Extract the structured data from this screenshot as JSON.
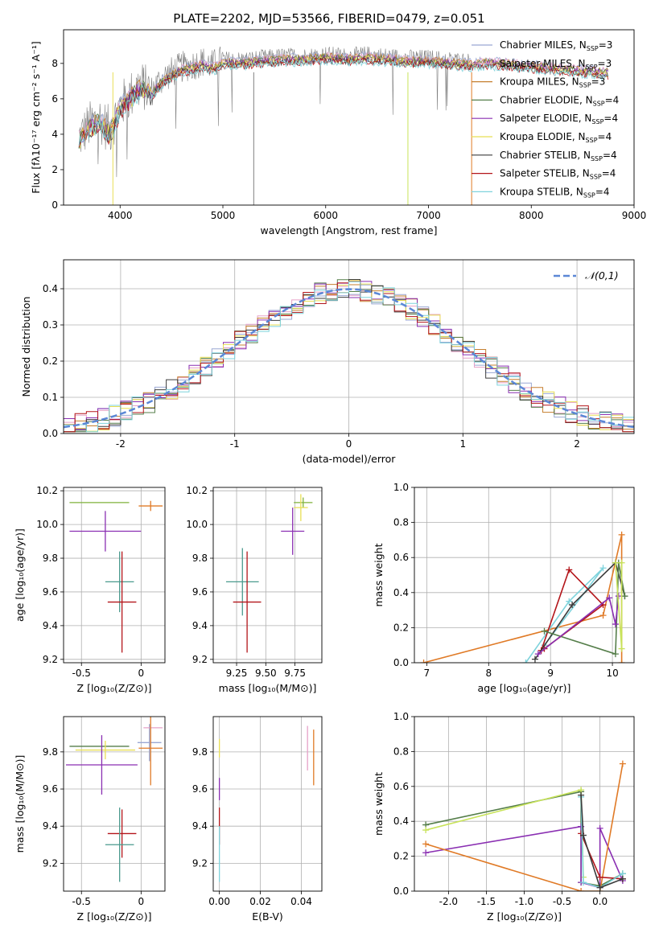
{
  "colors": {
    "chabrier_miles": "#9aa7d3",
    "salpeter_miles": "#e6a0c8",
    "kroupa_miles": "#c57f2f",
    "chabrier_elodie": "#557e4a",
    "salpeter_elodie": "#8a2fb2",
    "kroupa_elodie": "#e8df55",
    "chabrier_stelib": "#3b3b3b",
    "salpeter_stelib": "#b3151a",
    "kroupa_stelib": "#7fd3dc",
    "green_line": "#7fb23a",
    "orange_line": "#e07a26",
    "lime_line": "#c8e35a",
    "blue_dash": "#5b87d6"
  },
  "chart_data": [
    {
      "id": "spectrum",
      "type": "line",
      "title": "PLATE=2202, MJD=53566, FIBERID=0479, z=0.051",
      "xlabel": "wavelength [Angstrom, rest frame]",
      "ylabel": "Flux [fλ10⁻¹⁷ erg cm⁻² s⁻¹ A⁻¹]",
      "xlim": [
        3450,
        9000
      ],
      "ylim": [
        0,
        9.9
      ],
      "xticks": [
        4000,
        5000,
        6000,
        7000,
        8000,
        9000
      ],
      "yticks": [
        0,
        2,
        4,
        6,
        8
      ],
      "legend_position": "right",
      "legend": [
        {
          "name": "Chabrier MILES, N_SSP=3",
          "color": "#9aa7d3"
        },
        {
          "name": "Salpeter MILES, N_SSP=3",
          "color": "#e6a0c8"
        },
        {
          "name": "Kroupa MILES, N_SSP=3",
          "color": "#c57f2f"
        },
        {
          "name": "Chabrier ELODIE, N_SSP=4",
          "color": "#557e4a"
        },
        {
          "name": "Salpeter ELODIE, N_SSP=4",
          "color": "#8a2fb2"
        },
        {
          "name": "Kroupa ELODIE, N_SSP=4",
          "color": "#e8df55"
        },
        {
          "name": "Chabrier STELIB, N_SSP=4",
          "color": "#3b3b3b"
        },
        {
          "name": "Salpeter STELIB, N_SSP=4",
          "color": "#b3151a"
        },
        {
          "name": "Kroupa STELIB, N_SSP=4",
          "color": "#7fd3dc"
        }
      ],
      "data_curve": {
        "x": [
          3600,
          3700,
          3800,
          3900,
          4000,
          4100,
          4200,
          4300,
          4400,
          4500,
          4600,
          4700,
          4800,
          4900,
          5000,
          5200,
          5400,
          5600,
          5800,
          6000,
          6200,
          6400,
          6600,
          6800,
          7000,
          7200,
          7400,
          7600,
          7800,
          8000,
          8200,
          8400,
          8600,
          8800
        ],
        "y": [
          3.8,
          4.5,
          4.9,
          4.2,
          5.6,
          6.2,
          6.8,
          6.4,
          7.1,
          7.5,
          7.8,
          7.9,
          8.1,
          7.9,
          8.2,
          8.2,
          8.3,
          8.4,
          8.4,
          8.5,
          8.4,
          8.5,
          8.4,
          8.3,
          8.3,
          8.2,
          8.1,
          8.2,
          8.1,
          8.0,
          7.9,
          7.8,
          7.7,
          7.6
        ]
      }
    },
    {
      "id": "residuals",
      "type": "bar",
      "xlabel": "(data-model)/error",
      "ylabel": "Normed distribution",
      "xlim": [
        -2.5,
        2.5
      ],
      "ylim": [
        0,
        0.48
      ],
      "xticks": [
        -2,
        -1,
        0,
        1,
        2
      ],
      "yticks": [
        0.0,
        0.1,
        0.2,
        0.3,
        0.4
      ],
      "legend": [
        {
          "name": "𝒩(0,1)",
          "color": "#5b87d6",
          "style": "dashed"
        }
      ],
      "bin_width": 0.1
    },
    {
      "id": "age_vs_Z",
      "type": "scatter",
      "xlabel": "Z [log₁₀(Z/Z⊙)]",
      "ylabel": "age  [log₁₀(age/yr)]",
      "xlim": [
        -0.65,
        0.2
      ],
      "ylim": [
        9.18,
        10.22
      ],
      "xticks": [
        -0.5,
        0.0
      ],
      "yticks": [
        9.2,
        9.4,
        9.6,
        9.8,
        10.0,
        10.2
      ],
      "points": [
        {
          "x": -0.35,
          "y": 10.13,
          "xerr": 0.25,
          "yerr": 0.0,
          "color": "#7fb23a"
        },
        {
          "x": 0.08,
          "y": 10.11,
          "xerr": 0.1,
          "yerr": 0.03,
          "color": "#e07a26"
        },
        {
          "x": -0.3,
          "y": 9.96,
          "xerr": 0.3,
          "yerr": 0.12,
          "color": "#8a2fb2"
        },
        {
          "x": -0.18,
          "y": 9.66,
          "xerr": 0.12,
          "yerr": 0.18,
          "color": "#4a9a8e"
        },
        {
          "x": -0.16,
          "y": 9.54,
          "xerr": 0.12,
          "yerr": 0.3,
          "color": "#b3151a"
        }
      ]
    },
    {
      "id": "age_vs_mass",
      "type": "scatter",
      "xlabel": "mass [log₁₀(M/M⊙)]",
      "ylabel": "",
      "xlim": [
        9.05,
        9.98
      ],
      "ylim": [
        9.18,
        10.22
      ],
      "xticks": [
        9.25,
        9.5,
        9.75
      ],
      "yticks": [
        9.2,
        9.4,
        9.6,
        9.8,
        10.0,
        10.2
      ],
      "points": [
        {
          "x": 9.82,
          "y": 10.13,
          "xerr": 0.08,
          "yerr": 0.03,
          "color": "#7fb23a"
        },
        {
          "x": 9.8,
          "y": 10.1,
          "xerr": 0.06,
          "yerr": 0.08,
          "color": "#e8df55"
        },
        {
          "x": 9.73,
          "y": 9.96,
          "xerr": 0.1,
          "yerr": 0.14,
          "color": "#8a2fb2"
        },
        {
          "x": 9.3,
          "y": 9.66,
          "xerr": 0.14,
          "yerr": 0.2,
          "color": "#4a9a8e"
        },
        {
          "x": 9.34,
          "y": 9.54,
          "xerr": 0.12,
          "yerr": 0.3,
          "color": "#b3151a"
        }
      ]
    },
    {
      "id": "massweight_vs_age",
      "type": "line",
      "xlabel": "age  [log₁₀(age/yr)]",
      "ylabel": "mass weight",
      "xlim": [
        6.8,
        10.35
      ],
      "ylim": [
        0,
        1.0
      ],
      "xticks": [
        7,
        8,
        9,
        10
      ],
      "yticks": [
        0.0,
        0.2,
        0.4,
        0.6,
        0.8,
        1.0
      ],
      "series": [
        {
          "color": "#e07a26",
          "x": [
            6.95,
            9.85,
            10.15,
            10.15
          ],
          "y": [
            0.0,
            0.27,
            0.73,
            0.0
          ]
        },
        {
          "color": "#7fd3dc",
          "x": [
            8.6,
            9.3,
            9.85,
            8.9
          ],
          "y": [
            0.0,
            0.35,
            0.54,
            0.1
          ]
        },
        {
          "color": "#b3151a",
          "x": [
            8.85,
            9.3,
            9.85,
            8.9
          ],
          "y": [
            0.07,
            0.53,
            0.33,
            0.08
          ]
        },
        {
          "color": "#3b3b3b",
          "x": [
            8.75,
            9.35,
            10.05,
            10.2
          ],
          "y": [
            0.02,
            0.33,
            0.57,
            0.38
          ]
        },
        {
          "color": "#557e4a",
          "x": [
            8.9,
            10.05,
            10.1,
            10.2
          ],
          "y": [
            0.18,
            0.05,
            0.57,
            0.38
          ]
        },
        {
          "color": "#8a2fb2",
          "x": [
            8.8,
            9.95,
            10.05,
            10.1
          ],
          "y": [
            0.05,
            0.37,
            0.22,
            0.38
          ]
        },
        {
          "color": "#c8e35a",
          "x": [
            10.05,
            10.15,
            10.15
          ],
          "y": [
            0.57,
            0.08,
            0.57
          ]
        }
      ]
    },
    {
      "id": "mass_vs_Z",
      "type": "scatter",
      "xlabel": "Z [log₁₀(Z/Z⊙)]",
      "ylabel": "mass [log₁₀(M/M⊙)]",
      "xlim": [
        -0.65,
        0.2
      ],
      "ylim": [
        9.05,
        9.99
      ],
      "xticks": [
        -0.5,
        0.0
      ],
      "yticks": [
        9.2,
        9.4,
        9.6,
        9.8
      ],
      "points": [
        {
          "x": -0.35,
          "y": 9.83,
          "xerr": 0.25,
          "yerr": 0.0,
          "color": "#557e4a"
        },
        {
          "x": -0.3,
          "y": 9.81,
          "xerr": 0.25,
          "yerr": 0.05,
          "color": "#e8df55"
        },
        {
          "x": 0.07,
          "y": 9.85,
          "xerr": 0.1,
          "yerr": 0.1,
          "color": "#9aa7d3"
        },
        {
          "x": 0.1,
          "y": 9.93,
          "xerr": 0.08,
          "yerr": 0.0,
          "color": "#e6a0c8"
        },
        {
          "x": 0.08,
          "y": 9.82,
          "xerr": 0.1,
          "yerr": 0.2,
          "color": "#e07a26"
        },
        {
          "x": -0.33,
          "y": 9.73,
          "xerr": 0.3,
          "yerr": 0.16,
          "color": "#8a2fb2"
        },
        {
          "x": -0.16,
          "y": 9.36,
          "xerr": 0.12,
          "yerr": 0.13,
          "color": "#b3151a"
        },
        {
          "x": -0.18,
          "y": 9.3,
          "xerr": 0.12,
          "yerr": 0.2,
          "color": "#4a9a8e"
        }
      ]
    },
    {
      "id": "mass_vs_ebv",
      "type": "scatter",
      "xlabel": "E(B-V)",
      "ylabel": "",
      "xlim": [
        -0.003,
        0.05
      ],
      "ylim": [
        9.05,
        9.99
      ],
      "xticks": [
        0.0,
        0.02,
        0.04
      ],
      "yticks": [
        9.2,
        9.4,
        9.6,
        9.8
      ],
      "points": [
        {
          "x": 0.0,
          "y": 9.82,
          "xerr": 0.0,
          "yerr": 0.05,
          "color": "#e8df55"
        },
        {
          "x": 0.0,
          "y": 9.6,
          "xerr": 0.0,
          "yerr": 0.06,
          "color": "#8a2fb2"
        },
        {
          "x": 0.0,
          "y": 9.4,
          "xerr": 0.0,
          "yerr": 0.1,
          "color": "#b3151a"
        },
        {
          "x": 0.0,
          "y": 9.25,
          "xerr": 0.0,
          "yerr": 0.15,
          "color": "#7fd3dc"
        },
        {
          "x": 0.043,
          "y": 9.82,
          "xerr": 0.0,
          "yerr": 0.12,
          "color": "#e6a0c8"
        },
        {
          "x": 0.046,
          "y": 9.77,
          "xerr": 0.0,
          "yerr": 0.15,
          "color": "#e07a26"
        }
      ]
    },
    {
      "id": "massweight_vs_Z",
      "type": "line",
      "xlabel": "Z [log₁₀(Z/Z⊙)]",
      "ylabel": "mass weight",
      "xlim": [
        -2.45,
        0.45
      ],
      "ylim": [
        0,
        1.0
      ],
      "xticks": [
        -2.0,
        -1.5,
        -1.0,
        -0.5,
        0.0
      ],
      "yticks": [
        0.0,
        0.2,
        0.4,
        0.6,
        0.8,
        1.0
      ],
      "series": [
        {
          "color": "#557e4a",
          "x": [
            -2.3,
            -0.25,
            -0.25,
            0.0,
            0.3
          ],
          "y": [
            0.38,
            0.57,
            0.05,
            0.03,
            0.1
          ]
        },
        {
          "color": "#c8e35a",
          "x": [
            -2.3,
            -0.25,
            -0.22
          ],
          "y": [
            0.35,
            0.58,
            0.08
          ]
        },
        {
          "color": "#8a2fb2",
          "x": [
            -2.3,
            -0.25,
            -0.25,
            0.0,
            0.0,
            0.3
          ],
          "y": [
            0.22,
            0.37,
            0.05,
            0.02,
            0.36,
            0.06
          ]
        },
        {
          "color": "#e07a26",
          "x": [
            -2.3,
            -0.25,
            0.0,
            0.3
          ],
          "y": [
            0.27,
            0.0,
            0.0,
            0.73
          ]
        },
        {
          "color": "#b3151a",
          "x": [
            -0.25,
            0.0,
            0.3
          ],
          "y": [
            0.33,
            0.08,
            0.07
          ]
        },
        {
          "color": "#7fd3dc",
          "x": [
            -0.25,
            -0.22,
            0.0,
            0.3
          ],
          "y": [
            0.54,
            0.05,
            0.02,
            0.1
          ]
        },
        {
          "color": "#3b3b3b",
          "x": [
            -0.25,
            -0.22,
            0.0,
            0.3
          ],
          "y": [
            0.55,
            0.32,
            0.02,
            0.07
          ]
        }
      ]
    }
  ]
}
